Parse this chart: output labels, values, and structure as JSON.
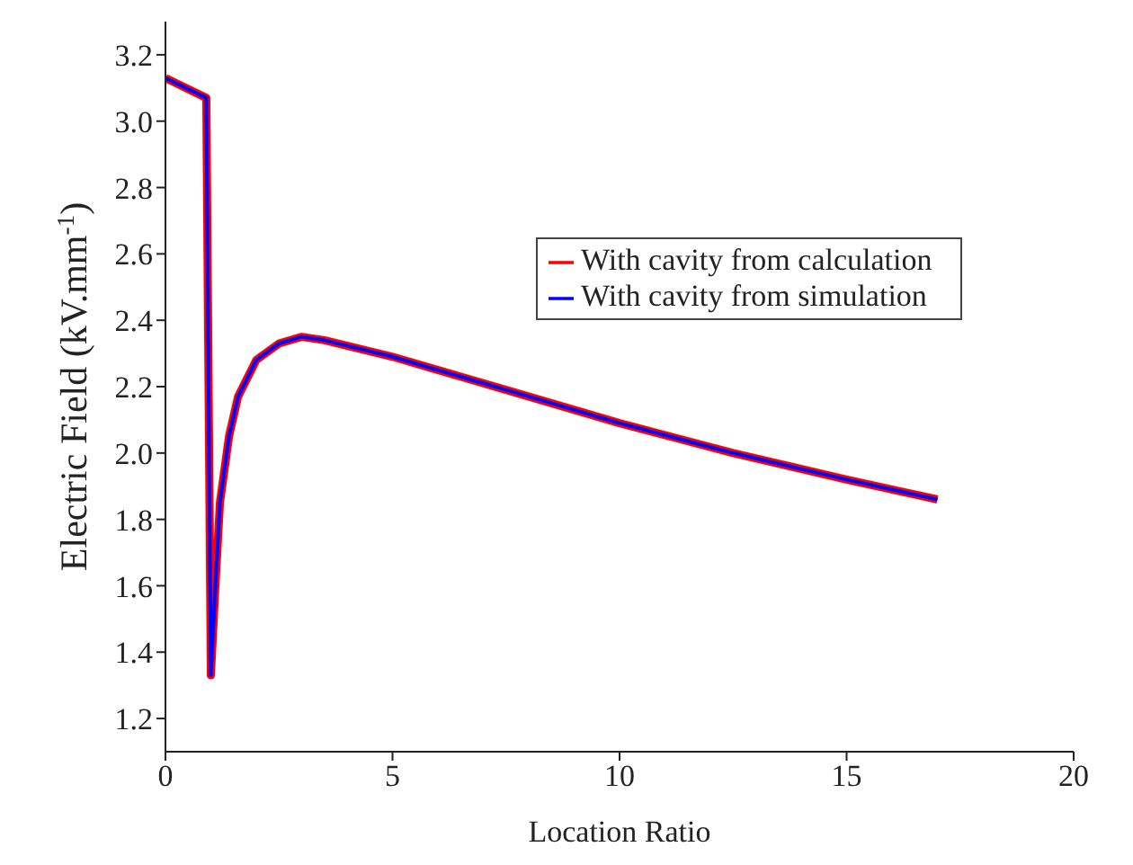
{
  "chart_data": {
    "type": "line",
    "xlabel": "Location Ratio",
    "ylabel": "Electric Field (kV.mm$^{-1}$)",
    "xlim": [
      0,
      20
    ],
    "xticks": [
      0,
      5,
      10,
      15,
      20
    ],
    "ylim": [
      1.1,
      3.3
    ],
    "yticks": [
      1.2,
      1.4,
      1.6,
      1.8,
      {
        "value": 2,
        "label": "2.0"
      },
      2.2,
      2.4,
      2.6,
      2.8,
      {
        "value": 3,
        "label": "3.0"
      },
      3.2
    ],
    "grid": false,
    "legend": "top right",
    "marker": "none",
    "line_style": "solid",
    "series": [
      {
        "name": "With cavity from calculation",
        "color": "#ff0000",
        "x": [
          0,
          0.9,
          1.0,
          1.1,
          1.2,
          1.4,
          1.6,
          2.0,
          2.5,
          3.0,
          3.5,
          5,
          7.5,
          10,
          12.5,
          15,
          17
        ],
        "values": [
          3.13,
          3.07,
          1.33,
          1.6,
          1.85,
          2.05,
          2.17,
          2.28,
          2.33,
          2.35,
          2.34,
          2.29,
          2.19,
          2.09,
          2.0,
          1.92,
          1.86
        ]
      },
      {
        "name": "With cavity from simulation",
        "color": "#0000ff",
        "x": [
          0,
          0.9,
          1.0,
          1.1,
          1.2,
          1.4,
          1.6,
          2.0,
          2.5,
          3.0,
          3.5,
          5,
          7.5,
          10,
          12.5,
          15,
          17
        ],
        "values": [
          3.13,
          3.07,
          1.33,
          1.6,
          1.85,
          2.05,
          2.17,
          2.28,
          2.33,
          2.35,
          2.34,
          2.29,
          2.19,
          2.09,
          2.0,
          1.92,
          1.86
        ]
      }
    ]
  }
}
